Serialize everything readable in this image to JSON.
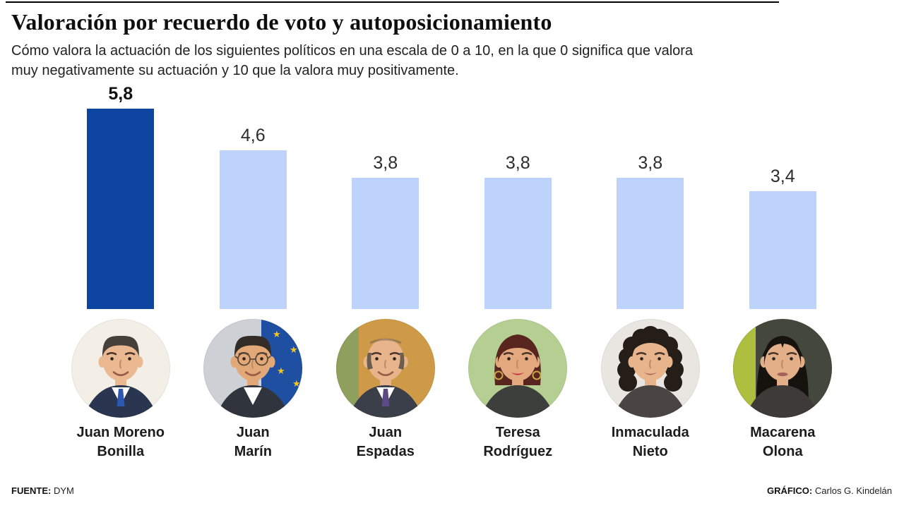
{
  "header": {
    "title": "Valoración por recuerdo de voto y autoposicionamiento",
    "subtitle_line1": "Cómo valora la actuación de los siguientes políticos en una escala de 0 a 10, en la que 0 significa que valora",
    "subtitle_line2": "muy negativamente su actuación y 10 que la valora muy positivamente."
  },
  "chart_data": {
    "type": "bar",
    "title": "Valoración por recuerdo de voto y autoposicionamiento",
    "categories": [
      "Juan Moreno Bonilla",
      "Juan Marín",
      "Juan Espadas",
      "Teresa Rodríguez",
      "Inmaculada Nieto",
      "Macarena Olona"
    ],
    "values": [
      5.8,
      4.6,
      3.8,
      3.8,
      3.8,
      3.4
    ],
    "value_labels": [
      "5,8",
      "4,6",
      "3,8",
      "3,8",
      "3,8",
      "3,4"
    ],
    "value_range": [
      0,
      10
    ],
    "highlight_index": 0,
    "colors": {
      "highlight": "#0d45a0",
      "regular": "#bed3fb"
    },
    "grid": false,
    "axis_lines": false,
    "legend": "none"
  },
  "people": [
    {
      "name": "Juan Moreno Bonilla",
      "name_lines": [
        "Juan Moreno",
        "Bonilla"
      ],
      "avatar": {
        "bg": "#f3efe6",
        "skin": "#eab992",
        "hair": "#46403a",
        "style": "short",
        "suit": "#2a3550",
        "shirt": "#ffffff",
        "tie": "#2d57b0",
        "expression": "smile"
      }
    },
    {
      "name": "Juan Marín",
      "name_lines": [
        "Juan",
        "Marín"
      ],
      "avatar": {
        "bg": "#cdd1d6",
        "bg2": "#1f4fa0",
        "bg2_side": "right",
        "stars": "#f5c518",
        "skin": "#e2a877",
        "hair": "#332c26",
        "style": "short",
        "suit": "#30343d",
        "shirt": "#ffffff",
        "glasses": true,
        "expression": "smile"
      }
    },
    {
      "name": "Juan Espadas",
      "name_lines": [
        "Juan",
        "Espadas"
      ],
      "avatar": {
        "bg": "#cf9a48",
        "bg2": "#8f9f5e",
        "bg2_side": "left",
        "skin": "#e7b48b",
        "hair": "#6b5d4f",
        "style": "balding",
        "suit": "#3a3f4a",
        "shirt": "#ffffff",
        "tie": "#5c4a86",
        "expression": "smile"
      }
    },
    {
      "name": "Teresa Rodríguez",
      "name_lines": [
        "Teresa",
        "Rodríguez"
      ],
      "avatar": {
        "bg": "#b5cf92",
        "skin": "#e3a87e",
        "hair": "#58251f",
        "style": "bob",
        "suit": "#3c3f3b",
        "lipstick": "#c2273d",
        "earrings": "#caa64a",
        "expression": "smile"
      }
    },
    {
      "name": "Inmaculada Nieto",
      "name_lines": [
        "Inmaculada",
        "Nieto"
      ],
      "avatar": {
        "bg": "#e9e6e1",
        "skin": "#e8b48c",
        "hair": "#241d18",
        "style": "curly",
        "suit": "#4a4543",
        "lipstick": "#b0605f",
        "expression": "smile"
      }
    },
    {
      "name": "Macarena Olona",
      "name_lines": [
        "Macarena",
        "Olona"
      ],
      "avatar": {
        "bg": "#44473c",
        "bg2": "#aebf3f",
        "bg2_side": "left",
        "skin": "#e2af88",
        "hair": "#16130f",
        "style": "long",
        "suit": "#3d3a38",
        "lipstick": "#a8605c",
        "expression": "neutral"
      }
    }
  ],
  "footer": {
    "source_label": "FUENTE:",
    "source_value": "DYM",
    "credit_label": "GRÁFICO:",
    "credit_value": "Carlos G. Kindelán"
  }
}
